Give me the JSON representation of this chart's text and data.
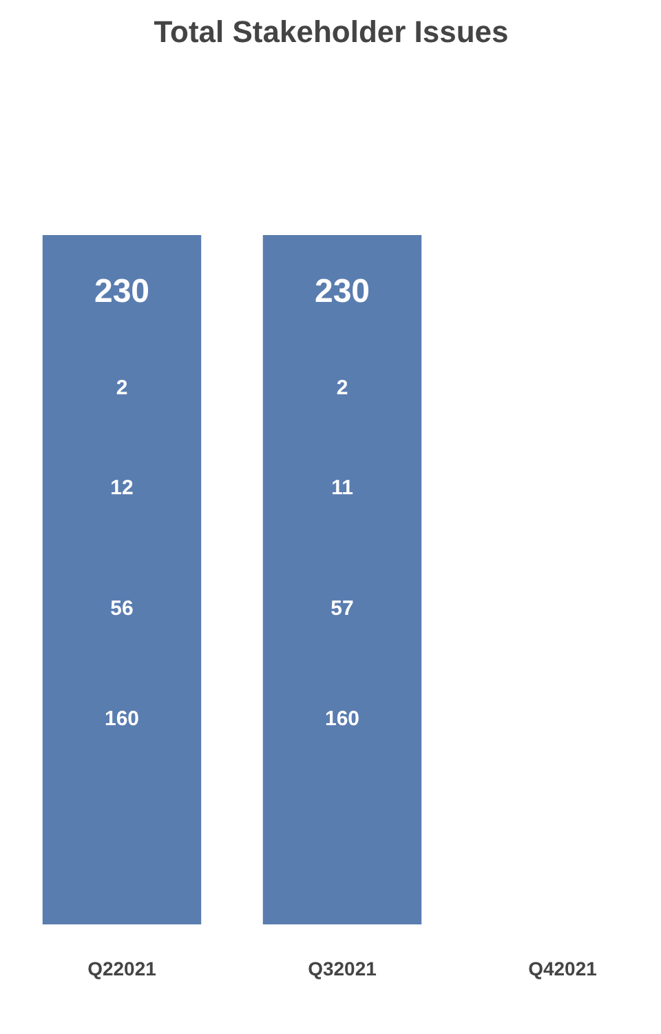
{
  "chart_data": {
    "type": "bar",
    "title": "Total Stakeholder Issues",
    "categories": [
      "Q22021",
      "Q32021",
      "Q42021"
    ],
    "values": [
      230,
      230,
      null
    ],
    "color": "#5a7db0",
    "data_labels": true,
    "tick_labels": "x",
    "annotations": [
      "2",
      "12",
      "56",
      "160",
      "2",
      "11",
      "57",
      "160"
    ]
  }
}
